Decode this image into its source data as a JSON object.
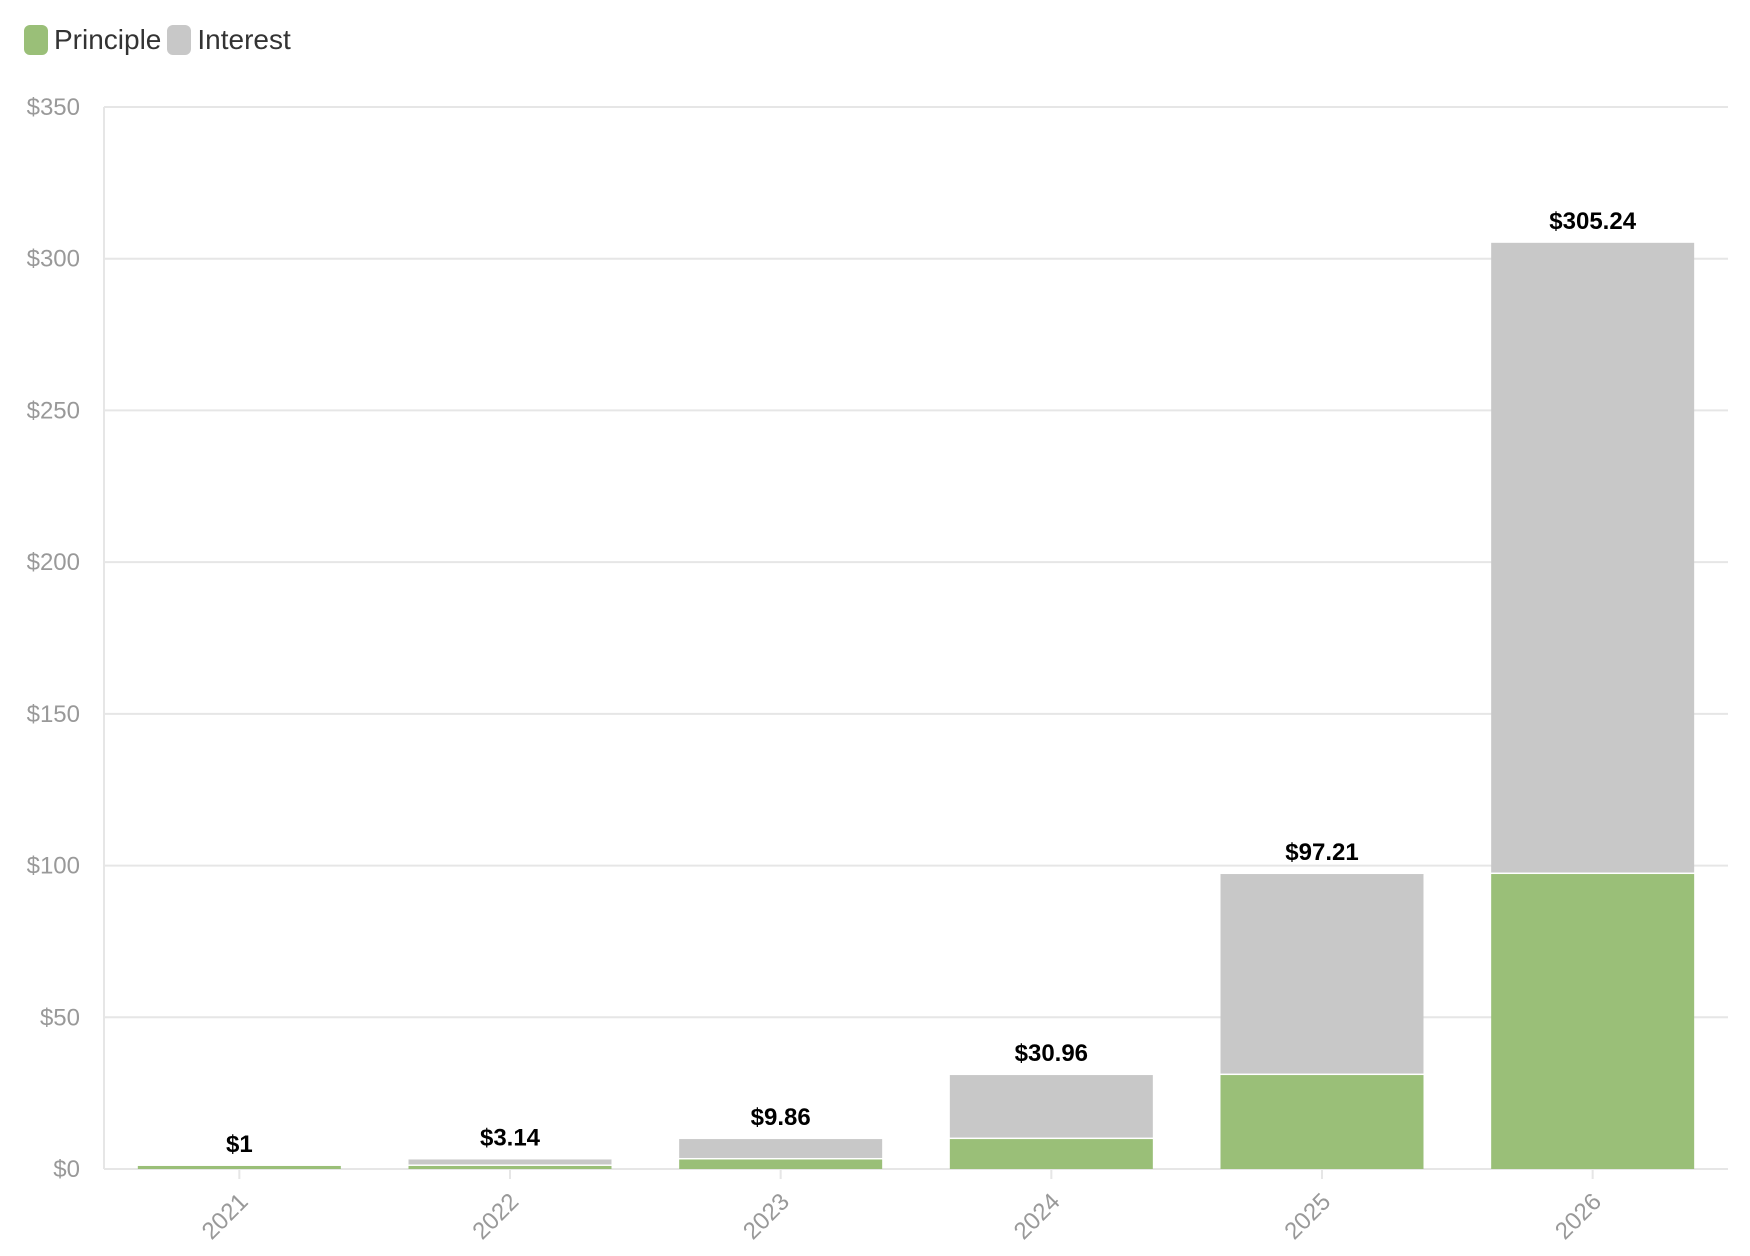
{
  "chart_data": {
    "type": "bar",
    "stacked": true,
    "categories": [
      "2021",
      "2022",
      "2023",
      "2024",
      "2025",
      "2026"
    ],
    "series": [
      {
        "name": "Principle",
        "color": "#9abf78",
        "values": [
          1,
          1,
          3.14,
          9.86,
          30.96,
          97.21
        ]
      },
      {
        "name": "Interest",
        "color": "#c8c8c8",
        "values": [
          0,
          2.14,
          6.72,
          21.1,
          66.25,
          208.03
        ]
      }
    ],
    "totals": [
      "$1",
      "$3.14",
      "$9.86",
      "$30.96",
      "$97.21",
      "$305.24"
    ],
    "y_ticks": [
      "$0",
      "$50",
      "$100",
      "$150",
      "$200",
      "$250",
      "$300",
      "$350"
    ],
    "ylim": [
      0,
      350
    ],
    "grid": true,
    "legend_position": "top-left"
  }
}
